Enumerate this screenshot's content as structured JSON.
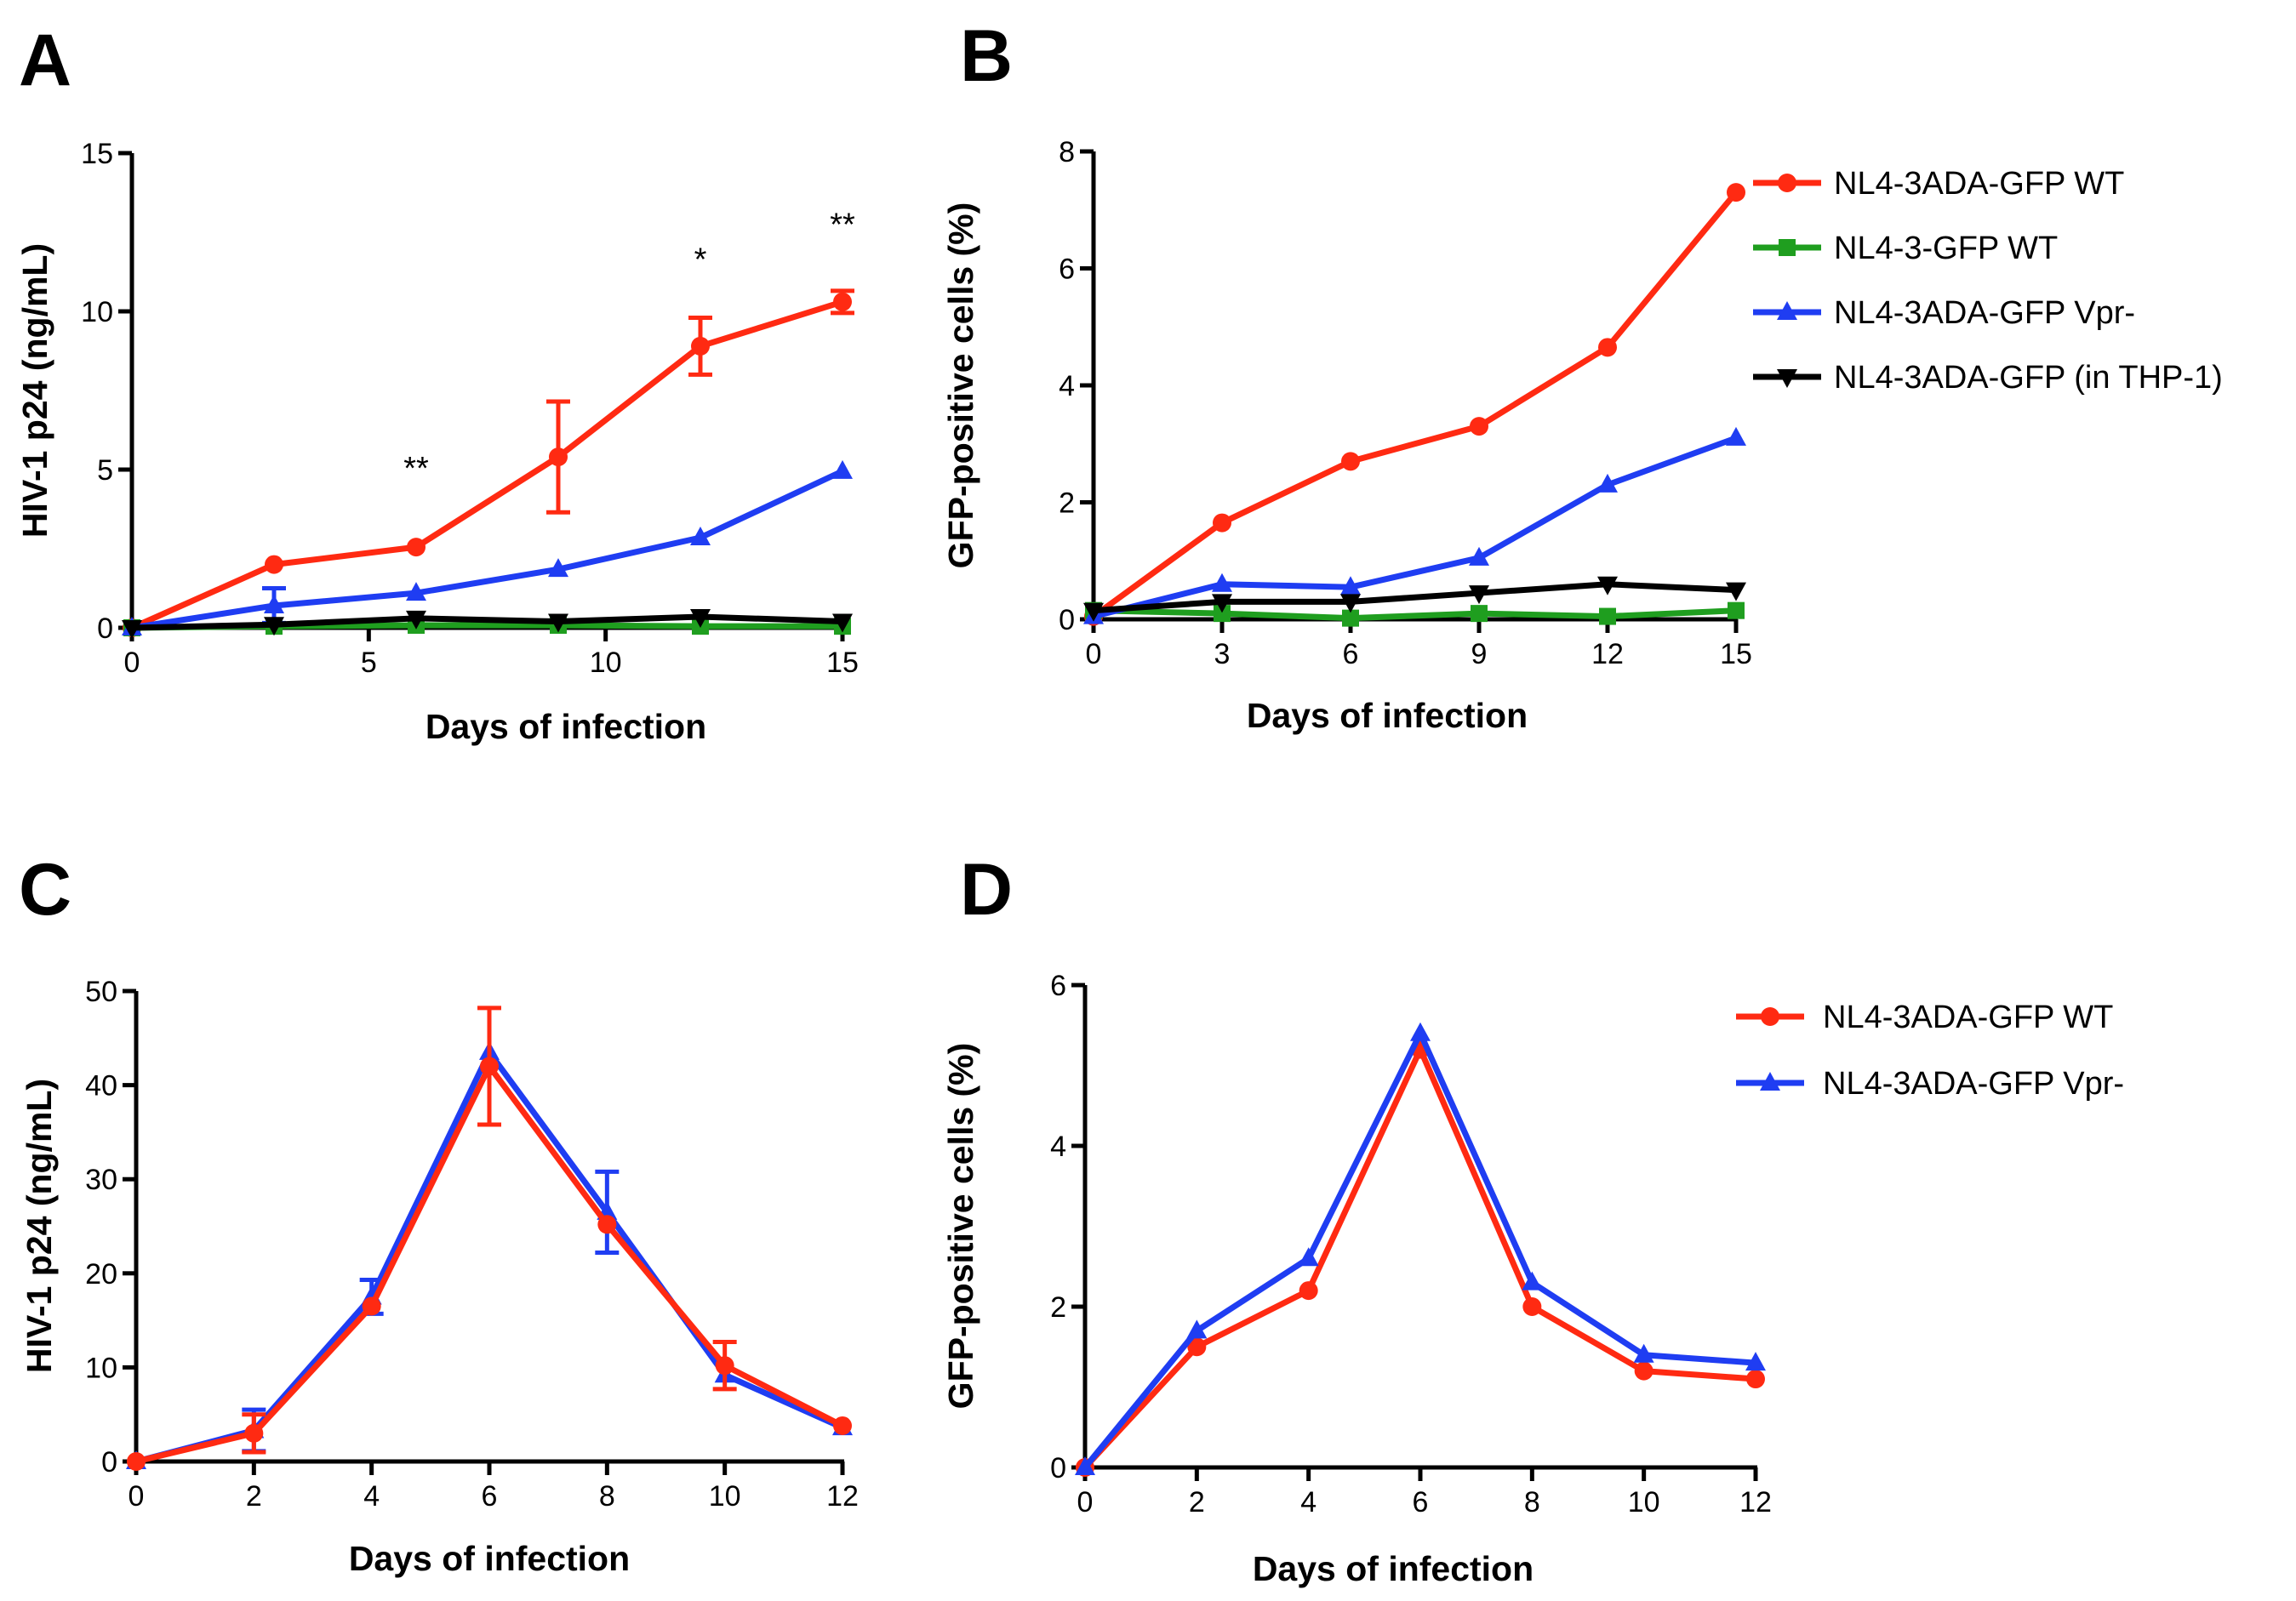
{
  "colors": {
    "red": "#ff2a12",
    "green": "#1f9e1f",
    "blue": "#1f3df2",
    "black": "#000000"
  },
  "chart_data": [
    {
      "panel": "A",
      "type": "line",
      "xlabel": "Days of infection",
      "ylabel": "HIV-1 p24 (ng/mL)",
      "xlim": [
        0,
        15
      ],
      "ylim": [
        0,
        15
      ],
      "xticks": [
        "0",
        "5",
        "10",
        "15"
      ],
      "yticks": [
        "0",
        "5",
        "10",
        "15"
      ],
      "xtick_values": [
        0,
        5,
        10,
        15
      ],
      "ytick_values": [
        0,
        5,
        10,
        15
      ],
      "x": [
        0,
        3,
        6,
        9,
        12,
        15
      ],
      "series": [
        {
          "name": "NL4-3ADA-GFP WT",
          "color": "red",
          "marker": "circle",
          "values": [
            0,
            2.0,
            2.55,
            5.4,
            8.9,
            10.3
          ],
          "errors": [
            0,
            0,
            0,
            1.75,
            0.9,
            0.35
          ]
        },
        {
          "name": "NL4-3-GFP WT",
          "color": "green",
          "marker": "square",
          "values": [
            0,
            0.05,
            0.08,
            0.08,
            0.05,
            0.05
          ],
          "errors": [
            0,
            0,
            0,
            0,
            0,
            0
          ]
        },
        {
          "name": "NL4-3ADA-GFP Vpr-",
          "color": "blue",
          "marker": "triangle-up",
          "values": [
            0,
            0.7,
            1.1,
            1.85,
            2.85,
            4.95
          ],
          "errors": [
            0,
            0.55,
            0,
            0,
            0,
            0
          ]
        },
        {
          "name": "NL4-3ADA-GFP (in THP-1)",
          "color": "black",
          "marker": "triangle-down",
          "values": [
            0,
            0.1,
            0.3,
            0.2,
            0.35,
            0.2
          ],
          "errors": [
            0,
            0,
            0,
            0,
            0,
            0
          ]
        }
      ],
      "annotations": [
        {
          "x": 6,
          "y": 4.7,
          "text": "**"
        },
        {
          "x": 12,
          "y": 11.3,
          "text": "*"
        },
        {
          "x": 15,
          "y": 12.4,
          "text": "**"
        }
      ]
    },
    {
      "panel": "B",
      "type": "line",
      "xlabel": "Days of infection",
      "ylabel": "GFP-positive cells (%)",
      "xlim": [
        0,
        15
      ],
      "ylim": [
        0,
        8
      ],
      "xticks": [
        "0",
        "3",
        "6",
        "9",
        "12",
        "15"
      ],
      "yticks": [
        "0",
        "2",
        "4",
        "6",
        "8"
      ],
      "xtick_values": [
        0,
        3,
        6,
        9,
        12,
        15
      ],
      "ytick_values": [
        0,
        2,
        4,
        6,
        8
      ],
      "x": [
        0,
        3,
        6,
        9,
        12,
        15
      ],
      "legend": "right",
      "series": [
        {
          "name": "NL4-3ADA-GFP WT",
          "color": "red",
          "marker": "circle",
          "values": [
            0.05,
            1.65,
            2.7,
            3.3,
            4.65,
            7.3
          ]
        },
        {
          "name": "NL4-3-GFP WT",
          "color": "green",
          "marker": "square",
          "values": [
            0.15,
            0.1,
            0.02,
            0.1,
            0.05,
            0.15
          ]
        },
        {
          "name": "NL4-3ADA-GFP Vpr-",
          "color": "blue",
          "marker": "triangle-up",
          "values": [
            0.05,
            0.6,
            0.55,
            1.05,
            2.3,
            3.1
          ]
        },
        {
          "name": "NL4-3ADA-GFP (in THP-1)",
          "color": "black",
          "marker": "triangle-down",
          "values": [
            0.15,
            0.3,
            0.3,
            0.45,
            0.6,
            0.5
          ]
        }
      ]
    },
    {
      "panel": "C",
      "type": "line",
      "xlabel": "Days of infection",
      "ylabel": "HIV-1 p24 (ng/mL)",
      "xlim": [
        0,
        12
      ],
      "ylim": [
        0,
        50
      ],
      "xticks": [
        "0",
        "2",
        "4",
        "6",
        "8",
        "10",
        "12"
      ],
      "yticks": [
        "0",
        "10",
        "20",
        "30",
        "40",
        "50"
      ],
      "xtick_values": [
        0,
        2,
        4,
        6,
        8,
        10,
        12
      ],
      "ytick_values": [
        0,
        10,
        20,
        30,
        40,
        50
      ],
      "x": [
        0,
        2,
        4,
        6,
        8,
        10,
        12
      ],
      "series": [
        {
          "name": "NL4-3ADA-GFP Vpr-",
          "color": "blue",
          "marker": "triangle-up",
          "values": [
            0,
            3.3,
            17.5,
            43.5,
            26.5,
            9.2,
            3.6
          ],
          "errors": [
            0,
            2.2,
            1.8,
            0,
            4.3,
            0,
            0
          ]
        },
        {
          "name": "NL4-3ADA-GFP WT",
          "color": "red",
          "marker": "circle",
          "values": [
            0,
            3.0,
            16.5,
            42.0,
            25.2,
            10.2,
            3.8
          ],
          "errors": [
            0,
            2.0,
            0,
            6.2,
            0,
            2.5,
            0
          ]
        }
      ]
    },
    {
      "panel": "D",
      "type": "line",
      "xlabel": "Days of infection",
      "ylabel": "GFP-positive cells (%)",
      "xlim": [
        0,
        12
      ],
      "ylim": [
        0,
        6
      ],
      "xticks": [
        "0",
        "2",
        "4",
        "6",
        "8",
        "10",
        "12"
      ],
      "yticks": [
        "0",
        "2",
        "4",
        "6"
      ],
      "xtick_values": [
        0,
        2,
        4,
        6,
        8,
        10,
        12
      ],
      "ytick_values": [
        0,
        2,
        4,
        6
      ],
      "x": [
        0,
        2,
        4,
        6,
        8,
        10,
        12
      ],
      "legend": "right",
      "series": [
        {
          "name": "NL4-3ADA-GFP WT",
          "color": "red",
          "marker": "circle",
          "values": [
            0,
            1.5,
            2.2,
            5.2,
            2.0,
            1.2,
            1.1
          ]
        },
        {
          "name": "NL4-3ADA-GFP Vpr-",
          "color": "blue",
          "marker": "triangle-up",
          "values": [
            0,
            1.7,
            2.6,
            5.4,
            2.3,
            1.4,
            1.3
          ]
        }
      ]
    }
  ],
  "panel_labels": [
    "A",
    "B",
    "C",
    "D"
  ]
}
